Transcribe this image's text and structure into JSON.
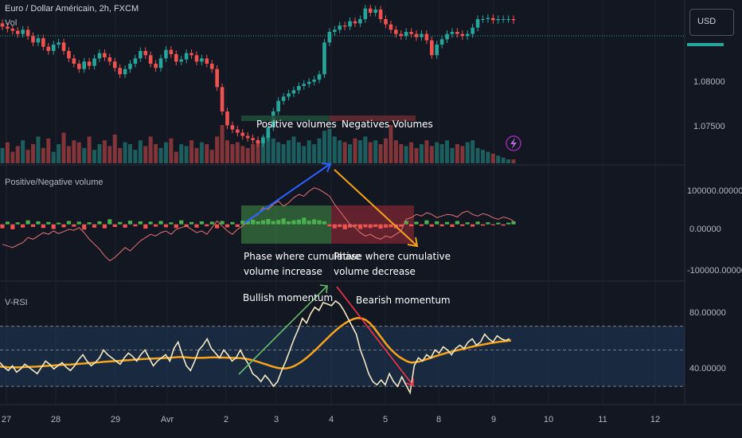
{
  "header": {
    "symbol_title": "Euro / Dollar Américain, 2h, FXCM",
    "currency": "USD"
  },
  "panes": {
    "price": {
      "label": "Vol",
      "ticks": [
        "1.08000",
        "1.07500"
      ]
    },
    "pn_volume": {
      "label": "Positive/Negative volume",
      "ticks": [
        "100000.00000",
        "0.00000",
        "-100000.00000"
      ]
    },
    "vrsi": {
      "label": "V-RSI",
      "ticks": [
        "80.00000",
        "40.00000"
      ]
    }
  },
  "annotations": {
    "positive_volumes": "Positive volumes",
    "negative_volumes": "Negatives Volumes",
    "phase_increase_1": "Phase where cumulative",
    "phase_increase_2": "volume increase",
    "phase_decrease_1": "Phase where cumulative",
    "phase_decrease_2": "volume decrease",
    "bullish": "Bullish momentum",
    "bearish": "Bearish momentum"
  },
  "colors": {
    "up": "#26a69a",
    "down": "#ef5350",
    "background": "#131722",
    "vrsi_line": "#f3e9c4",
    "vrsi_ma": "#f7a21b",
    "arrow_blue": "#2962ff",
    "arrow_orange": "#f7a21b",
    "arrow_green": "#66bb6a",
    "arrow_red": "#f23645"
  },
  "chart_data": [
    {
      "type": "candlestick",
      "pane": "price",
      "ylim": [
        1.072,
        1.0855
      ],
      "x_ticks": [
        "27",
        "28",
        "29",
        "Avr",
        "2",
        "3",
        "4",
        "5",
        "8",
        "9",
        "10",
        "11",
        "12"
      ],
      "close_series": [
        1.0845,
        1.0843,
        1.0841,
        1.0838,
        1.0842,
        1.0836,
        1.083,
        1.0834,
        1.0826,
        1.0822,
        1.0828,
        1.083,
        1.0822,
        1.0815,
        1.081,
        1.0805,
        1.0812,
        1.0808,
        1.0815,
        1.082,
        1.0816,
        1.0812,
        1.0806,
        1.08,
        1.0805,
        1.081,
        1.0815,
        1.0822,
        1.0818,
        1.081,
        1.0806,
        1.0815,
        1.0823,
        1.0819,
        1.0812,
        1.0814,
        1.082,
        1.0818,
        1.0812,
        1.0815,
        1.081,
        1.0805,
        1.0788,
        1.0765,
        1.0752,
        1.0748,
        1.0745,
        1.0742,
        1.074,
        1.0738,
        1.0735,
        1.074,
        1.075,
        1.0765,
        1.0775,
        1.0779,
        1.0782,
        1.0785,
        1.0789,
        1.0791,
        1.0793,
        1.0795,
        1.08,
        1.083,
        1.084,
        1.0842,
        1.0846,
        1.0845,
        1.085,
        1.0848,
        1.0852,
        1.0862,
        1.0858,
        1.0861,
        1.0852,
        1.0847,
        1.0842,
        1.0838,
        1.0836,
        1.084,
        1.0838,
        1.0835,
        1.0838,
        1.0832,
        1.0818,
        1.0828,
        1.0833,
        1.0838,
        1.084,
        1.0838,
        1.0836,
        1.0838,
        1.0844,
        1.0852,
        1.0852,
        1.0853,
        1.0851,
        1.0852,
        1.0852,
        1.0852,
        1.0851
      ]
    },
    {
      "type": "bar",
      "pane": "price",
      "name": "Vol",
      "values": [
        0.4,
        0.55,
        0.3,
        0.45,
        0.6,
        0.35,
        0.5,
        0.7,
        0.4,
        0.65,
        0.3,
        0.5,
        0.8,
        0.45,
        0.6,
        0.55,
        0.4,
        0.7,
        0.35,
        0.5,
        0.6,
        0.45,
        0.75,
        0.4,
        0.55,
        0.5,
        0.35,
        0.6,
        0.45,
        0.7,
        0.5,
        0.4,
        0.55,
        0.65,
        0.3,
        0.5,
        0.45,
        0.6,
        0.4,
        0.55,
        0.5,
        0.35,
        0.7,
        1.0,
        0.6,
        0.5,
        0.55,
        0.45,
        0.4,
        0.5,
        0.6,
        0.7,
        0.8,
        0.65,
        0.55,
        0.5,
        0.6,
        0.7,
        0.55,
        0.45,
        0.6,
        0.5,
        0.65,
        0.85,
        0.9,
        0.7,
        0.6,
        0.55,
        0.5,
        0.65,
        0.6,
        0.7,
        0.55,
        0.6,
        0.5,
        0.65,
        1.0,
        0.6,
        0.5,
        0.45,
        0.55,
        0.4,
        0.5,
        0.6,
        0.45,
        0.55,
        0.5,
        0.6,
        0.4,
        0.5,
        0.45,
        0.55,
        0.6,
        0.4,
        0.35,
        0.3,
        0.25,
        0.2,
        0.15,
        0.1,
        0.1
      ]
    },
    {
      "type": "bar",
      "pane": "pn_volume",
      "name": "Positive/Negative volume",
      "ylim": [
        -140000,
        160000
      ],
      "values": [
        -12000,
        8000,
        -15000,
        6000,
        -10000,
        12000,
        -8000,
        9000,
        -11000,
        7000,
        -14000,
        5000,
        -9000,
        10000,
        -7000,
        8000,
        -16000,
        6000,
        -10000,
        9000,
        -12000,
        15000,
        -8000,
        7000,
        -10000,
        11000,
        -6000,
        9000,
        -13000,
        8000,
        -7000,
        10000,
        -9000,
        6000,
        -11000,
        12000,
        -8000,
        7000,
        -10000,
        9000,
        -6000,
        8000,
        -12000,
        10000,
        -9000,
        7000,
        -8000,
        11000,
        10000,
        14000,
        9000,
        12000,
        16000,
        10000,
        13000,
        18000,
        9000,
        12000,
        14000,
        20000,
        11000,
        15000,
        12000,
        9000,
        -6000,
        -12000,
        -8000,
        -15000,
        -10000,
        -7000,
        -14000,
        -9000,
        -11000,
        -8000,
        -13000,
        -10000,
        -9000,
        -12000,
        -7000,
        10000,
        -6000,
        8000,
        -5000,
        12000,
        -7000,
        9000,
        -6000,
        7000,
        -8000,
        10000,
        -5000,
        6000,
        -7000,
        8000,
        -4000,
        6000,
        -3000,
        5000,
        -4000,
        5000,
        9000
      ]
    },
    {
      "type": "line",
      "pane": "pn_volume",
      "name": "cumulative volume",
      "values": [
        -60000,
        -65000,
        -70000,
        -62000,
        -55000,
        -40000,
        -45000,
        -35000,
        -25000,
        -30000,
        -20000,
        -28000,
        -22000,
        -15000,
        -18000,
        -10000,
        -25000,
        -45000,
        -60000,
        -75000,
        -95000,
        -110000,
        -100000,
        -85000,
        -70000,
        -80000,
        -65000,
        -50000,
        -40000,
        -30000,
        -35000,
        -25000,
        -20000,
        -30000,
        -15000,
        -10000,
        -5000,
        -15000,
        -25000,
        -20000,
        -30000,
        -10000,
        10000,
        -5000,
        -20000,
        -30000,
        -15000,
        -5000,
        10000,
        20000,
        30000,
        50000,
        45000,
        60000,
        70000,
        55000,
        65000,
        80000,
        90000,
        85000,
        100000,
        110000,
        105000,
        95000,
        85000,
        60000,
        40000,
        20000,
        0,
        -10000,
        -25000,
        -35000,
        -30000,
        -40000,
        -45000,
        -35000,
        -40000,
        -30000,
        -20000,
        15000,
        20000,
        30000,
        25000,
        35000,
        30000,
        20000,
        25000,
        30000,
        28000,
        22000,
        35000,
        40000,
        30000,
        25000,
        32000,
        28000,
        20000,
        15000,
        22000,
        18000,
        10000
      ]
    },
    {
      "type": "line",
      "pane": "vrsi",
      "name": "V-RSI",
      "ylim": [
        22,
        95
      ],
      "levels": [
        70,
        55,
        32
      ],
      "values": [
        47,
        44,
        42,
        45,
        41,
        43,
        46,
        44,
        42,
        40,
        44,
        48,
        46,
        43,
        45,
        47,
        44,
        42,
        45,
        49,
        52,
        48,
        45,
        47,
        50,
        55,
        52,
        50,
        48,
        46,
        50,
        53,
        51,
        48,
        52,
        55,
        50,
        45,
        48,
        50,
        52,
        48,
        56,
        60,
        52,
        45,
        42,
        48,
        55,
        58,
        62,
        56,
        53,
        50,
        55,
        52,
        48,
        50,
        55,
        50,
        46,
        40,
        38,
        35,
        39,
        36,
        32,
        35,
        42,
        48,
        55,
        62,
        68,
        75,
        72,
        78,
        82,
        80,
        85,
        84,
        83,
        86,
        84,
        80,
        75,
        70,
        65,
        55,
        48,
        40,
        35,
        33,
        36,
        33,
        40,
        35,
        32,
        38,
        33,
        28,
        45,
        50,
        48,
        52,
        50,
        55,
        53,
        57,
        55,
        52,
        56,
        58,
        56,
        60,
        62,
        58,
        60,
        65,
        62,
        60,
        64,
        62,
        61,
        62
      ]
    },
    {
      "type": "line",
      "pane": "vrsi",
      "name": "V-RSI MA",
      "values": [
        44.5,
        44.3,
        44.1,
        44.0,
        44.0,
        44.0,
        44.2,
        44.3,
        44.4,
        44.5,
        44.7,
        44.9,
        45.1,
        45.2,
        45.4,
        45.6,
        45.7,
        45.8,
        46.0,
        46.2,
        46.4,
        46.6,
        46.8,
        47.0,
        47.2,
        47.5,
        47.7,
        47.9,
        48.0,
        48.2,
        48.4,
        48.6,
        48.8,
        49.0,
        49.2,
        49.4,
        49.5,
        49.6,
        49.7,
        49.8,
        50.0,
        50.1,
        50.3,
        50.5,
        50.5,
        50.3,
        50.1,
        50.0,
        50.0,
        50.1,
        50.2,
        50.3,
        50.3,
        50.2,
        50.2,
        50.1,
        50.0,
        49.9,
        49.8,
        49.5,
        49.0,
        48.4,
        47.6,
        46.7,
        45.9,
        45.0,
        44.2,
        43.6,
        43.3,
        43.4,
        44.0,
        45.1,
        46.6,
        48.4,
        50.5,
        52.8,
        55.2,
        57.8,
        60.4,
        63.0,
        65.5,
        67.8,
        70.0,
        71.8,
        73.4,
        74.5,
        75.2,
        75.0,
        74.0,
        72.0,
        69.0,
        65.5,
        62.0,
        58.5,
        55.5,
        53.0,
        50.8,
        49.2,
        47.8,
        47.0,
        47.2,
        47.8,
        48.6,
        49.4,
        50.3,
        51.2,
        52.0,
        52.8,
        53.5,
        54.1,
        54.8,
        55.4,
        56.0,
        56.7,
        57.3,
        57.8,
        58.3,
        58.8,
        59.3,
        59.7,
        60.1,
        60.4,
        60.7,
        61.0
      ]
    }
  ]
}
